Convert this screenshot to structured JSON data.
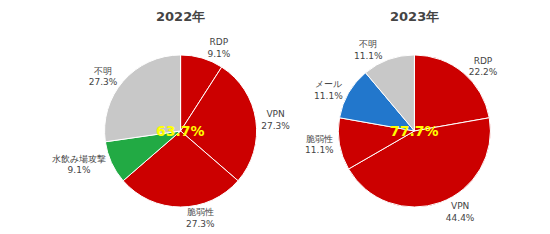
{
  "chart_data": [
    {
      "type": "pie",
      "title": "2022年",
      "categories": [
        "RDP",
        "VPN",
        "脆弱性",
        "水飲み場攻撃",
        "不明"
      ],
      "values": [
        9.1,
        27.3,
        27.3,
        9.1,
        27.3
      ],
      "value_labels": [
        "9.1%",
        "27.3%",
        "27.3%",
        "9.1%",
        "27.3%"
      ],
      "colors": [
        "#cc0000",
        "#cc0000",
        "#cc0000",
        "#22aa44",
        "#c8c8c8"
      ],
      "data_labels": true,
      "annotations": [
        {
          "text": "63.7%",
          "color": "#ffff00"
        }
      ]
    },
    {
      "type": "pie",
      "title": "2023年",
      "categories": [
        "RDP",
        "VPN",
        "脆弱性",
        "メール",
        "不明"
      ],
      "values": [
        22.2,
        44.4,
        11.1,
        11.1,
        11.1
      ],
      "value_labels": [
        "22.2%",
        "44.4%",
        "11.1%",
        "11.1%",
        "11.1%"
      ],
      "colors": [
        "#cc0000",
        "#cc0000",
        "#cc0000",
        "#2277cc",
        "#c8c8c8"
      ],
      "data_labels": true,
      "annotations": [
        {
          "text": "77.7%",
          "color": "#ffff00"
        }
      ]
    }
  ]
}
